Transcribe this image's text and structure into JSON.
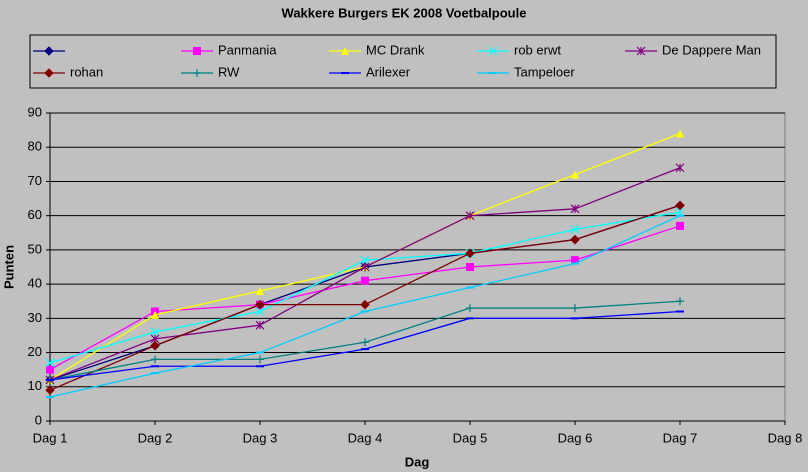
{
  "chart_data": {
    "type": "line",
    "title": "Wakkere Burgers EK 2008 Voetbalpoule",
    "x_label": "Dag",
    "y_label": "Punten",
    "categories": [
      "Dag 1",
      "Dag 2",
      "Dag 3",
      "Dag 4",
      "Dag 5",
      "Dag 6",
      "Dag 7",
      "Dag 8"
    ],
    "ylim": [
      0,
      90
    ],
    "yticks": [
      0,
      10,
      20,
      30,
      40,
      50,
      60,
      70,
      80,
      90
    ],
    "grid": true,
    "legend": "top",
    "series": [
      {
        "color": "#000080",
        "marker": "diamond",
        "values": [
          12,
          22,
          34,
          45,
          49,
          53,
          63,
          null
        ]
      },
      {
        "name": "Panmania",
        "color": "#ff00ff",
        "marker": "square",
        "values": [
          15,
          32,
          34,
          41,
          45,
          47,
          57,
          null
        ]
      },
      {
        "name": "MC Drank",
        "color": "#ffff00",
        "marker": "triangle",
        "values": [
          12,
          31,
          38,
          45,
          60,
          72,
          84,
          null
        ]
      },
      {
        "name": "rob erwt",
        "color": "#00ffff",
        "marker": "x",
        "values": [
          17,
          26,
          32,
          47,
          49,
          56,
          61,
          null
        ]
      },
      {
        "name": "De Dappere Man",
        "color": "#800080",
        "marker": "star",
        "values": [
          12,
          24,
          28,
          45,
          60,
          62,
          74,
          null
        ]
      },
      {
        "name": "rohan",
        "color": "#800000",
        "marker": "diamond",
        "values": [
          9,
          22,
          34,
          34,
          49,
          53,
          63,
          null
        ]
      },
      {
        "name": "RW",
        "color": "#008080",
        "marker": "plus",
        "values": [
          12,
          18,
          18,
          23,
          33,
          33,
          35,
          null
        ]
      },
      {
        "name": "Arilexer",
        "color": "#0000ff",
        "marker": "dash",
        "values": [
          12,
          16,
          16,
          21,
          30,
          30,
          32,
          null
        ]
      },
      {
        "name": "Tampeloer",
        "color": "#00ccff",
        "marker": "dash",
        "values": [
          7,
          14,
          20,
          32,
          39,
          46,
          60,
          null
        ]
      }
    ]
  }
}
